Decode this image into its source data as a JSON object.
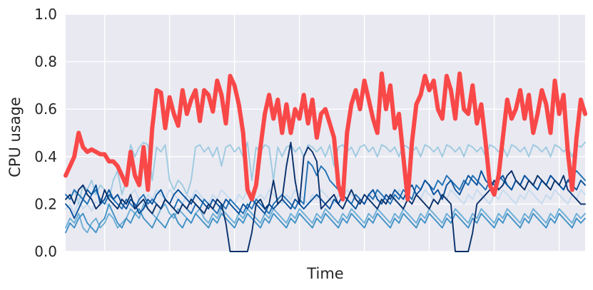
{
  "chart_data": {
    "type": "line",
    "title": "",
    "xlabel": "Time",
    "ylabel": "CPU usage",
    "ylim": [
      0,
      1.0
    ],
    "yticks": [
      "0.0",
      "0.2",
      "0.4",
      "0.6",
      "0.8",
      "1.0"
    ],
    "x_tick_labels_shown": false,
    "x_gridlines_count": 8,
    "grid": true,
    "background": "#e9e9f1",
    "legend": "none",
    "num_points": 121,
    "series": [
      {
        "role": "highlight",
        "color": "#f94848",
        "values": [
          0.32,
          0.36,
          0.4,
          0.5,
          0.44,
          0.42,
          0.43,
          0.42,
          0.41,
          0.41,
          0.38,
          0.38,
          0.36,
          0.32,
          0.28,
          0.42,
          0.32,
          0.28,
          0.44,
          0.26,
          0.52,
          0.68,
          0.67,
          0.52,
          0.65,
          0.58,
          0.53,
          0.68,
          0.58,
          0.64,
          0.68,
          0.55,
          0.68,
          0.66,
          0.59,
          0.72,
          0.66,
          0.54,
          0.74,
          0.7,
          0.62,
          0.5,
          0.26,
          0.22,
          0.28,
          0.44,
          0.58,
          0.66,
          0.56,
          0.64,
          0.5,
          0.62,
          0.5,
          0.6,
          0.56,
          0.66,
          0.54,
          0.64,
          0.48,
          0.58,
          0.6,
          0.54,
          0.48,
          0.28,
          0.22,
          0.5,
          0.62,
          0.68,
          0.6,
          0.72,
          0.64,
          0.56,
          0.5,
          0.75,
          0.6,
          0.7,
          0.52,
          0.58,
          0.4,
          0.22,
          0.46,
          0.62,
          0.66,
          0.74,
          0.68,
          0.72,
          0.6,
          0.56,
          0.74,
          0.68,
          0.56,
          0.75,
          0.6,
          0.58,
          0.7,
          0.54,
          0.62,
          0.46,
          0.28,
          0.24,
          0.32,
          0.48,
          0.64,
          0.56,
          0.6,
          0.68,
          0.56,
          0.66,
          0.5,
          0.58,
          0.68,
          0.62,
          0.5,
          0.72,
          0.58,
          0.66,
          0.42,
          0.26,
          0.48,
          0.64,
          0.58
        ]
      },
      {
        "color": "#9ecae1",
        "values": [
          0.24,
          0.22,
          0.26,
          0.2,
          0.28,
          0.26,
          0.3,
          0.24,
          0.28,
          0.26,
          0.22,
          0.3,
          0.34,
          0.24,
          0.3,
          0.45,
          0.4,
          0.44,
          0.46,
          0.45,
          0.3,
          0.44,
          0.42,
          0.45,
          0.3,
          0.26,
          0.3,
          0.28,
          0.24,
          0.3,
          0.44,
          0.45,
          0.42,
          0.44,
          0.4,
          0.44,
          0.36,
          0.44,
          0.45,
          0.42,
          0.44,
          0.4,
          0.46,
          0.3,
          0.44,
          0.42,
          0.45,
          0.44,
          0.3,
          0.44,
          0.4,
          0.44,
          0.45,
          0.42,
          0.44,
          0.4,
          0.45,
          0.44,
          0.42,
          0.44,
          0.4,
          0.45,
          0.36,
          0.44,
          0.45,
          0.42,
          0.44,
          0.4,
          0.44,
          0.45,
          0.42,
          0.44,
          0.4,
          0.45,
          0.44,
          0.42,
          0.44,
          0.4,
          0.45,
          0.44,
          0.42,
          0.44,
          0.4,
          0.45,
          0.44,
          0.42,
          0.44,
          0.4,
          0.45,
          0.44,
          0.42,
          0.44,
          0.4,
          0.45,
          0.44,
          0.42,
          0.44,
          0.4,
          0.45,
          0.44,
          0.42,
          0.44,
          0.4,
          0.45,
          0.44,
          0.42,
          0.44,
          0.4,
          0.45,
          0.44,
          0.42,
          0.44,
          0.4,
          0.45,
          0.44,
          0.42,
          0.44,
          0.4,
          0.45,
          0.44,
          0.46
        ]
      },
      {
        "color": "#c6dbef",
        "values": [
          0.18,
          0.2,
          0.16,
          0.22,
          0.18,
          0.2,
          0.17,
          0.21,
          0.19,
          0.22,
          0.18,
          0.2,
          0.24,
          0.22,
          0.2,
          0.24,
          0.26,
          0.22,
          0.2,
          0.24,
          0.22,
          0.26,
          0.24,
          0.22,
          0.26,
          0.24,
          0.22,
          0.2,
          0.24,
          0.22,
          0.26,
          0.24,
          0.22,
          0.2,
          0.24,
          0.22,
          0.26,
          0.24,
          0.22,
          0.2,
          0.24,
          0.22,
          0.26,
          0.24,
          0.22,
          0.24,
          0.22,
          0.26,
          0.24,
          0.22,
          0.2,
          0.24,
          0.22,
          0.26,
          0.24,
          0.22,
          0.2,
          0.24,
          0.22,
          0.26,
          0.24,
          0.22,
          0.2,
          0.24,
          0.22,
          0.26,
          0.24,
          0.22,
          0.2,
          0.24,
          0.22,
          0.26,
          0.24,
          0.22,
          0.2,
          0.24,
          0.22,
          0.26,
          0.24,
          0.22,
          0.2,
          0.24,
          0.22,
          0.26,
          0.24,
          0.22,
          0.2,
          0.24,
          0.22,
          0.26,
          0.24,
          0.22,
          0.2,
          0.24,
          0.22,
          0.26,
          0.24,
          0.22,
          0.2,
          0.24,
          0.22,
          0.26,
          0.24,
          0.22,
          0.2,
          0.24,
          0.22,
          0.26,
          0.24,
          0.22,
          0.2,
          0.24,
          0.22,
          0.26,
          0.24,
          0.22,
          0.2,
          0.24,
          0.22,
          0.26,
          0.24
        ]
      },
      {
        "color": "#6baed6",
        "values": [
          0.1,
          0.14,
          0.12,
          0.16,
          0.1,
          0.08,
          0.12,
          0.14,
          0.1,
          0.12,
          0.16,
          0.14,
          0.1,
          0.12,
          0.14,
          0.18,
          0.16,
          0.14,
          0.2,
          0.18,
          0.16,
          0.14,
          0.18,
          0.2,
          0.16,
          0.14,
          0.18,
          0.16,
          0.14,
          0.12,
          0.16,
          0.18,
          0.14,
          0.12,
          0.16,
          0.14,
          0.18,
          0.16,
          0.14,
          0.12,
          0.16,
          0.14,
          0.18,
          0.16,
          0.14,
          0.12,
          0.16,
          0.14,
          0.18,
          0.16,
          0.14,
          0.12,
          0.16,
          0.14,
          0.18,
          0.16,
          0.14,
          0.12,
          0.16,
          0.14,
          0.18,
          0.16,
          0.14,
          0.12,
          0.16,
          0.14,
          0.18,
          0.16,
          0.14,
          0.12,
          0.16,
          0.14,
          0.18,
          0.16,
          0.14,
          0.12,
          0.16,
          0.14,
          0.18,
          0.16,
          0.14,
          0.12,
          0.16,
          0.14,
          0.18,
          0.16,
          0.14,
          0.12,
          0.16,
          0.14,
          0.18,
          0.16,
          0.14,
          0.12,
          0.16,
          0.14,
          0.18,
          0.16,
          0.14,
          0.12,
          0.16,
          0.14,
          0.18,
          0.16,
          0.14,
          0.12,
          0.16,
          0.14,
          0.18,
          0.16,
          0.14,
          0.12,
          0.16,
          0.14,
          0.18,
          0.16,
          0.14,
          0.12,
          0.16,
          0.14,
          0.16
        ]
      },
      {
        "color": "#4292c6",
        "values": [
          0.08,
          0.12,
          0.1,
          0.14,
          0.16,
          0.12,
          0.1,
          0.08,
          0.12,
          0.14,
          0.2,
          0.16,
          0.12,
          0.1,
          0.14,
          0.12,
          0.16,
          0.18,
          0.14,
          0.12,
          0.1,
          0.14,
          0.12,
          0.1,
          0.14,
          0.16,
          0.12,
          0.1,
          0.14,
          0.12,
          0.16,
          0.14,
          0.12,
          0.1,
          0.14,
          0.12,
          0.16,
          0.14,
          0.12,
          0.1,
          0.14,
          0.12,
          0.16,
          0.14,
          0.12,
          0.1,
          0.14,
          0.12,
          0.16,
          0.14,
          0.12,
          0.1,
          0.14,
          0.12,
          0.16,
          0.14,
          0.12,
          0.1,
          0.14,
          0.12,
          0.16,
          0.14,
          0.12,
          0.1,
          0.14,
          0.12,
          0.16,
          0.14,
          0.12,
          0.1,
          0.14,
          0.12,
          0.16,
          0.14,
          0.12,
          0.1,
          0.14,
          0.12,
          0.16,
          0.14,
          0.12,
          0.1,
          0.14,
          0.12,
          0.16,
          0.14,
          0.12,
          0.1,
          0.14,
          0.12,
          0.16,
          0.14,
          0.12,
          0.1,
          0.14,
          0.12,
          0.16,
          0.14,
          0.12,
          0.1,
          0.14,
          0.12,
          0.16,
          0.14,
          0.12,
          0.1,
          0.14,
          0.12,
          0.16,
          0.14,
          0.12,
          0.1,
          0.14,
          0.12,
          0.16,
          0.14,
          0.12,
          0.1,
          0.14,
          0.12,
          0.14
        ]
      },
      {
        "color": "#2171b5",
        "values": [
          0.24,
          0.22,
          0.26,
          0.24,
          0.22,
          0.2,
          0.24,
          0.26,
          0.22,
          0.2,
          0.24,
          0.22,
          0.2,
          0.18,
          0.22,
          0.2,
          0.18,
          0.22,
          0.24,
          0.2,
          0.22,
          0.2,
          0.18,
          0.22,
          0.2,
          0.18,
          0.22,
          0.2,
          0.18,
          0.16,
          0.2,
          0.18,
          0.22,
          0.2,
          0.18,
          0.16,
          0.2,
          0.18,
          0.22,
          0.2,
          0.18,
          0.16,
          0.2,
          0.18,
          0.22,
          0.2,
          0.18,
          0.16,
          0.2,
          0.22,
          0.24,
          0.22,
          0.2,
          0.18,
          0.22,
          0.2,
          0.38,
          0.36,
          0.32,
          0.36,
          0.34,
          0.3,
          0.28,
          0.26,
          0.24,
          0.22,
          0.2,
          0.24,
          0.22,
          0.2,
          0.24,
          0.22,
          0.26,
          0.24,
          0.22,
          0.2,
          0.24,
          0.22,
          0.26,
          0.24,
          0.22,
          0.28,
          0.26,
          0.3,
          0.28,
          0.26,
          0.3,
          0.28,
          0.32,
          0.3,
          0.28,
          0.26,
          0.3,
          0.28,
          0.32,
          0.3,
          0.28,
          0.26,
          0.3,
          0.28,
          0.32,
          0.3,
          0.28,
          0.26,
          0.3,
          0.28,
          0.32,
          0.3,
          0.28,
          0.26,
          0.3,
          0.28,
          0.32,
          0.3,
          0.28,
          0.26,
          0.3,
          0.32,
          0.34,
          0.32,
          0.3
        ]
      },
      {
        "color": "#08519c",
        "values": [
          0.2,
          0.18,
          0.14,
          0.18,
          0.22,
          0.26,
          0.24,
          0.28,
          0.2,
          0.22,
          0.26,
          0.22,
          0.24,
          0.2,
          0.18,
          0.22,
          0.2,
          0.16,
          0.18,
          0.22,
          0.2,
          0.24,
          0.26,
          0.22,
          0.2,
          0.24,
          0.26,
          0.24,
          0.22,
          0.2,
          0.24,
          0.22,
          0.2,
          0.18,
          0.22,
          0.2,
          0.18,
          0.22,
          0.2,
          0.18,
          0.16,
          0.2,
          0.18,
          0.22,
          0.2,
          0.18,
          0.16,
          0.2,
          0.18,
          0.2,
          0.22,
          0.2,
          0.18,
          0.22,
          0.2,
          0.18,
          0.2,
          0.22,
          0.24,
          0.22,
          0.2,
          0.18,
          0.22,
          0.2,
          0.24,
          0.22,
          0.2,
          0.18,
          0.22,
          0.2,
          0.24,
          0.26,
          0.22,
          0.2,
          0.24,
          0.22,
          0.26,
          0.24,
          0.22,
          0.26,
          0.28,
          0.24,
          0.26,
          0.3,
          0.28,
          0.24,
          0.26,
          0.22,
          0.28,
          0.3,
          0.26,
          0.24,
          0.28,
          0.32,
          0.3,
          0.28,
          0.34,
          0.3,
          0.28,
          0.26,
          0.3,
          0.32,
          0.28,
          0.26,
          0.3,
          0.28,
          0.32,
          0.3,
          0.28,
          0.26,
          0.3,
          0.28,
          0.32,
          0.3,
          0.28,
          0.26,
          0.3,
          0.28,
          0.26,
          0.3,
          0.28
        ]
      },
      {
        "color": "#08306b",
        "values": [
          0.22,
          0.24,
          0.2,
          0.26,
          0.28,
          0.24,
          0.22,
          0.18,
          0.2,
          0.26,
          0.22,
          0.2,
          0.18,
          0.22,
          0.2,
          0.24,
          0.18,
          0.2,
          0.22,
          0.18,
          0.16,
          0.2,
          0.18,
          0.22,
          0.2,
          0.18,
          0.16,
          0.2,
          0.18,
          0.22,
          0.2,
          0.18,
          0.16,
          0.2,
          0.18,
          0.22,
          0.2,
          0.12,
          0.0,
          0.0,
          0.0,
          0.0,
          0.0,
          0.08,
          0.2,
          0.22,
          0.18,
          0.2,
          0.3,
          0.2,
          0.22,
          0.36,
          0.46,
          0.3,
          0.2,
          0.4,
          0.44,
          0.42,
          0.38,
          0.18,
          0.2,
          0.22,
          0.24,
          0.2,
          0.18,
          0.22,
          0.26,
          0.22,
          0.2,
          0.24,
          0.22,
          0.2,
          0.18,
          0.22,
          0.2,
          0.24,
          0.22,
          0.2,
          0.18,
          0.22,
          0.2,
          0.24,
          0.22,
          0.2,
          0.18,
          0.22,
          0.2,
          0.24,
          0.22,
          0.2,
          0.0,
          0.0,
          0.0,
          0.0,
          0.08,
          0.2,
          0.22,
          0.24,
          0.26,
          0.3,
          0.26,
          0.28,
          0.32,
          0.34,
          0.3,
          0.28,
          0.26,
          0.3,
          0.28,
          0.32,
          0.3,
          0.28,
          0.26,
          0.3,
          0.28,
          0.32,
          0.26,
          0.24,
          0.22,
          0.2,
          0.2
        ]
      }
    ]
  }
}
